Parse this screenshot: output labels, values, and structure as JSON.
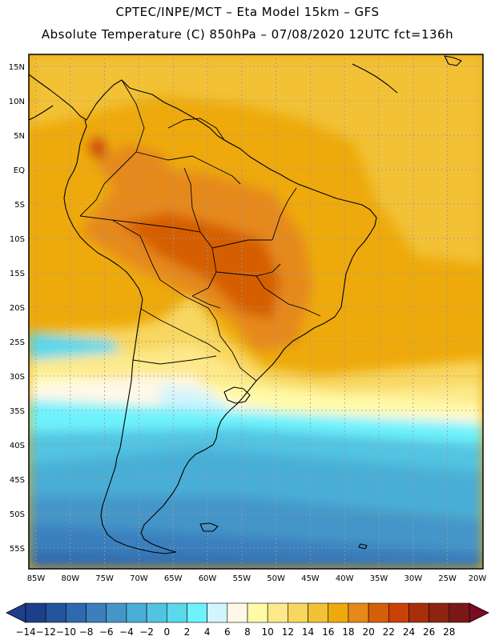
{
  "header": {
    "line1": "CPTEC/INPE/MCT –  Eta Model 15km – GFS",
    "line2": "Absolute Temperature (C) 850hPa – 07/08/2020 12UTC fct=136h"
  },
  "map": {
    "lat_labels": [
      "15N",
      "10N",
      "5N",
      "EQ",
      "5S",
      "10S",
      "15S",
      "20S",
      "25S",
      "30S",
      "35S",
      "40S",
      "45S",
      "50S",
      "55S"
    ],
    "lon_labels": [
      "85W",
      "80W",
      "75W",
      "70W",
      "65W",
      "60W",
      "55W",
      "50W",
      "45W",
      "40W",
      "35W",
      "30W",
      "25W",
      "20W"
    ]
  },
  "colorbar": {
    "labels": [
      "-14",
      "-12",
      "-10",
      "-8",
      "-6",
      "-4",
      "-2",
      "0",
      "2",
      "4",
      "6",
      "8",
      "10",
      "12",
      "14",
      "16",
      "18",
      "20",
      "22",
      "24",
      "26",
      "28"
    ],
    "colors": [
      "#1d3f8a",
      "#24549c",
      "#2f6aae",
      "#3b7fbe",
      "#4496c8",
      "#4aaed6",
      "#52c4e2",
      "#5ad8ec",
      "#6ef2fc",
      "#d2f4fc",
      "#fff8e6",
      "#fffaa8",
      "#fde98a",
      "#f8d760",
      "#f2c135",
      "#eeaa0c",
      "#e6891a",
      "#d55f06",
      "#c84208",
      "#a82f0a",
      "#8c2410",
      "#7a1818"
    ],
    "under_color": "#1d3f8a",
    "over_color": "#7a0d24"
  }
}
